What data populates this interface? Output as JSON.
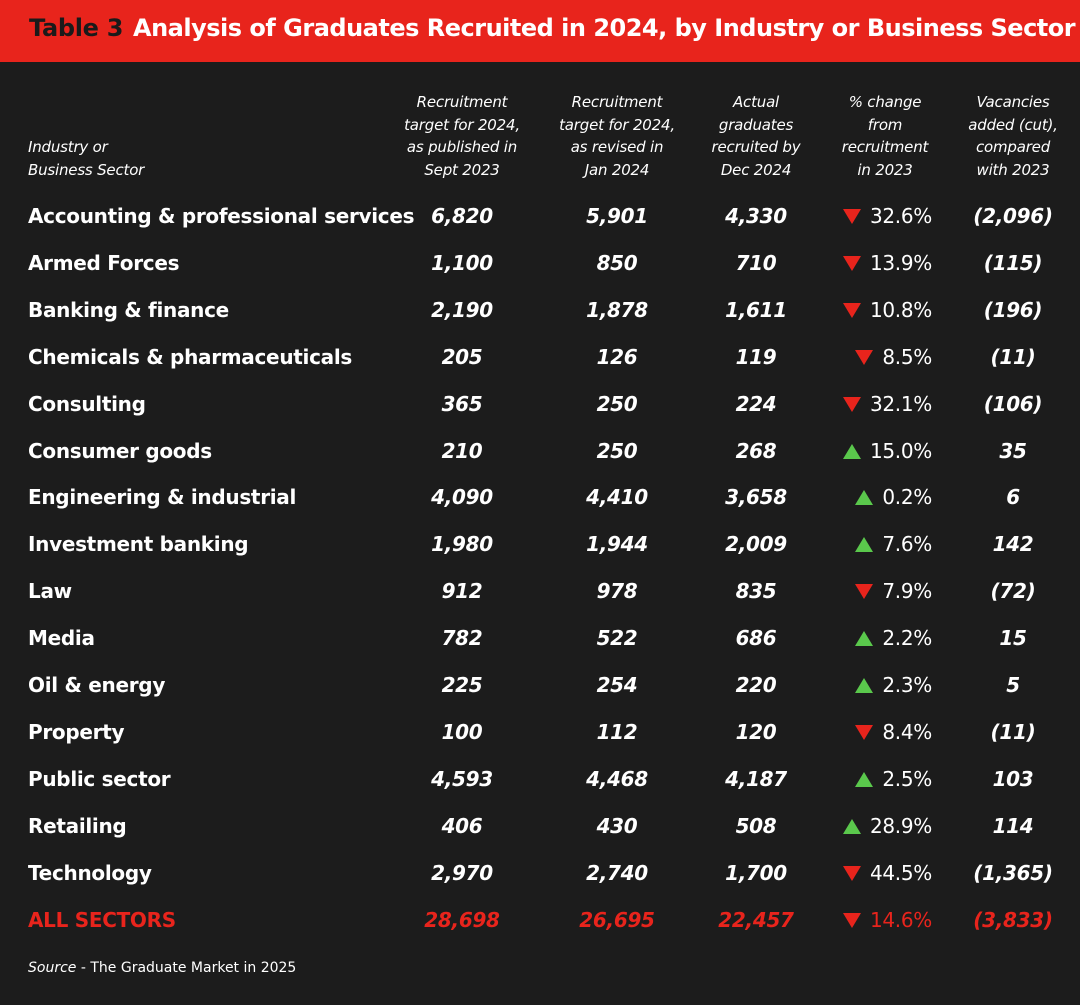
{
  "title": {
    "label": "Table 3",
    "text": "Analysis of Graduates Recruited in 2024, by Industry or Business Sector"
  },
  "colors": {
    "accent_red": "#e8241c",
    "up_green": "#5ac84c",
    "background": "#1c1c1c"
  },
  "headers": {
    "sector": [
      "Industry or",
      "Business Sector"
    ],
    "target_published": [
      "Recruitment",
      "target for 2024,",
      "as published in",
      "Sept 2023"
    ],
    "target_revised": [
      "Recruitment",
      "target for 2024,",
      "as revised in",
      "Jan 2024"
    ],
    "actual": [
      "Actual",
      "graduates",
      "recruited by",
      "Dec 2024"
    ],
    "pct_change": [
      "% change",
      "from",
      "recruitment",
      "in 2023"
    ],
    "vacancies": [
      "Vacancies",
      "added (cut),",
      "compared",
      "with 2023"
    ]
  },
  "rows": [
    {
      "sector": "Accounting & professional services",
      "target_published": "6,820",
      "target_revised": "5,901",
      "actual": "4,330",
      "direction": "down",
      "pct_change": "32.6%",
      "vacancies": "(2,096)"
    },
    {
      "sector": "Armed Forces",
      "target_published": "1,100",
      "target_revised": "850",
      "actual": "710",
      "direction": "down",
      "pct_change": "13.9%",
      "vacancies": "(115)"
    },
    {
      "sector": "Banking & finance",
      "target_published": "2,190",
      "target_revised": "1,878",
      "actual": "1,611",
      "direction": "down",
      "pct_change": "10.8%",
      "vacancies": "(196)"
    },
    {
      "sector": "Chemicals & pharmaceuticals",
      "target_published": "205",
      "target_revised": "126",
      "actual": "119",
      "direction": "down",
      "pct_change": "8.5%",
      "vacancies": "(11)"
    },
    {
      "sector": "Consulting",
      "target_published": "365",
      "target_revised": "250",
      "actual": "224",
      "direction": "down",
      "pct_change": "32.1%",
      "vacancies": "(106)"
    },
    {
      "sector": "Consumer goods",
      "target_published": "210",
      "target_revised": "250",
      "actual": "268",
      "direction": "up",
      "pct_change": "15.0%",
      "vacancies": "35"
    },
    {
      "sector": "Engineering & industrial",
      "target_published": "4,090",
      "target_revised": "4,410",
      "actual": "3,658",
      "direction": "up",
      "pct_change": "0.2%",
      "vacancies": "6"
    },
    {
      "sector": "Investment banking",
      "target_published": "1,980",
      "target_revised": "1,944",
      "actual": "2,009",
      "direction": "up",
      "pct_change": "7.6%",
      "vacancies": "142"
    },
    {
      "sector": "Law",
      "target_published": "912",
      "target_revised": "978",
      "actual": "835",
      "direction": "down",
      "pct_change": "7.9%",
      "vacancies": "(72)"
    },
    {
      "sector": "Media",
      "target_published": "782",
      "target_revised": "522",
      "actual": "686",
      "direction": "up",
      "pct_change": "2.2%",
      "vacancies": "15"
    },
    {
      "sector": "Oil & energy",
      "target_published": "225",
      "target_revised": "254",
      "actual": "220",
      "direction": "up",
      "pct_change": "2.3%",
      "vacancies": "5"
    },
    {
      "sector": "Property",
      "target_published": "100",
      "target_revised": "112",
      "actual": "120",
      "direction": "down",
      "pct_change": "8.4%",
      "vacancies": "(11)"
    },
    {
      "sector": "Public sector",
      "target_published": "4,593",
      "target_revised": "4,468",
      "actual": "4,187",
      "direction": "up",
      "pct_change": "2.5%",
      "vacancies": "103"
    },
    {
      "sector": "Retailing",
      "target_published": "406",
      "target_revised": "430",
      "actual": "508",
      "direction": "up",
      "pct_change": "28.9%",
      "vacancies": "114"
    },
    {
      "sector": "Technology",
      "target_published": "2,970",
      "target_revised": "2,740",
      "actual": "1,700",
      "direction": "down",
      "pct_change": "44.5%",
      "vacancies": "(1,365)"
    }
  ],
  "total": {
    "sector": "ALL SECTORS",
    "target_published": "28,698",
    "target_revised": "26,695",
    "actual": "22,457",
    "direction": "down",
    "pct_change": "14.6%",
    "vacancies": "(3,833)"
  },
  "source": {
    "label": "Source",
    "text": "- The Graduate Market in 2025"
  }
}
